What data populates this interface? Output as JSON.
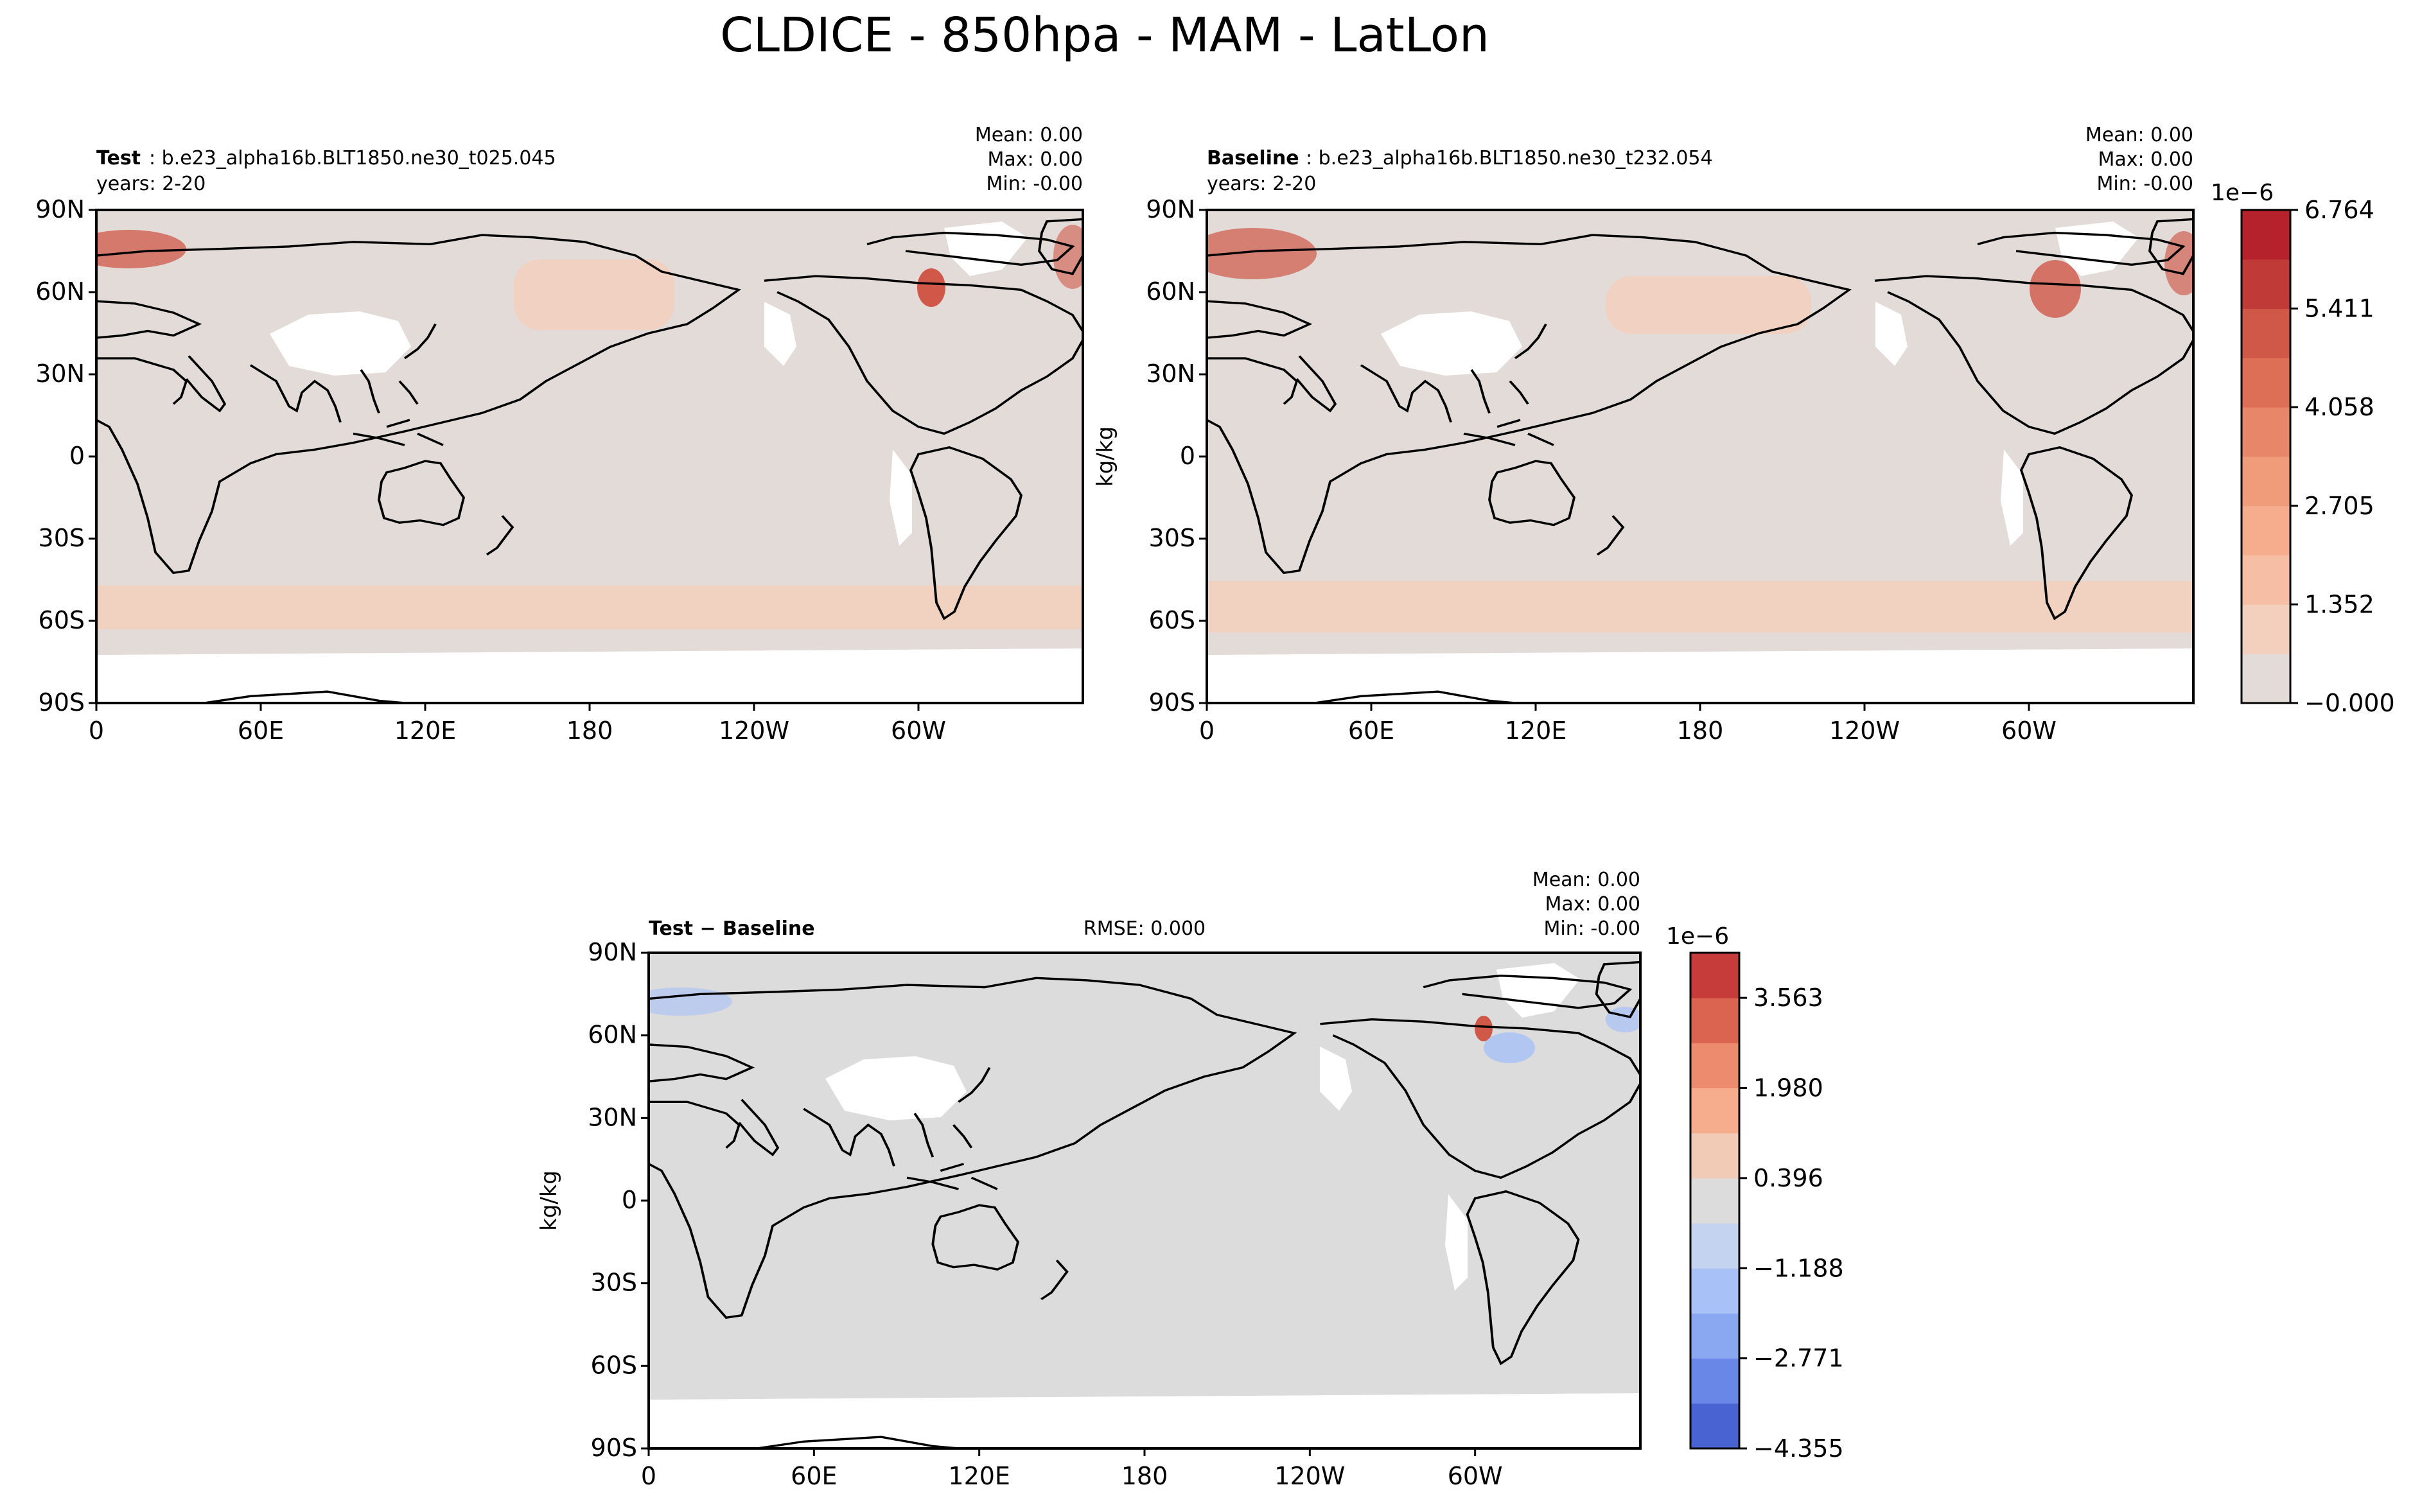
{
  "figure_title": "CLDICE - 850hpa - MAM - LatLon",
  "x_ticks": [
    "0",
    "60E",
    "120E",
    "180",
    "120W",
    "60W"
  ],
  "y_ticks": [
    "90N",
    "60N",
    "30N",
    "0",
    "30S",
    "60S",
    "90S"
  ],
  "panels": {
    "test": {
      "label_bold": "Test",
      "label_rest": ": b.e23_alpha16b.BLT1850.ne30_t025.045",
      "years": "years: 2-20",
      "mean": "Mean:  0.00",
      "max": "Max:  0.00",
      "min": "Min: -0.00"
    },
    "baseline": {
      "label_bold": "Baseline",
      "label_rest": ": b.e23_alpha16b.BLT1850.ne30_t232.054",
      "years": "years: 2-20",
      "mean": "Mean:  0.00",
      "max": "Max:  0.00",
      "min": "Min: -0.00",
      "ylabel": "kg/kg"
    },
    "diff": {
      "label": "Test − Baseline",
      "rmse": "RMSE: 0.000",
      "mean": "Mean:  0.00",
      "max": "Max:  0.00",
      "min": "Min: -0.00",
      "ylabel": "kg/kg"
    }
  },
  "colorbars": {
    "top": {
      "exponent": "1e−6",
      "tick_labels": [
        "6.764",
        "5.411",
        "4.058",
        "2.705",
        "1.352",
        "−0.000"
      ],
      "levels": 10,
      "colors": [
        "#e2dbd8",
        "#f3cfbd",
        "#f6bfa5",
        "#f5ad8e",
        "#f09b7a",
        "#e8866a",
        "#dd6f57",
        "#d05848",
        "#c03a37",
        "#b5222c"
      ]
    },
    "bottom": {
      "exponent": "1e−6",
      "tick_labels": [
        "3.563",
        "1.980",
        "0.396",
        "−1.188",
        "−2.771",
        "−4.355"
      ],
      "levels": 11,
      "colors": [
        "#4a63d3",
        "#6987e6",
        "#8aa8f2",
        "#a8c1f7",
        "#c4d4f0",
        "#dcdcdc",
        "#f2cbb7",
        "#f5ad8e",
        "#ec8b6d",
        "#db6451",
        "#c53c3a"
      ]
    }
  },
  "map_colors": {
    "background_top": "#e2dbd8",
    "background_diff": "#dcdcdc",
    "band": "#f3cfbd",
    "hot": "#d05848",
    "blue": "#a8c1f7"
  }
}
